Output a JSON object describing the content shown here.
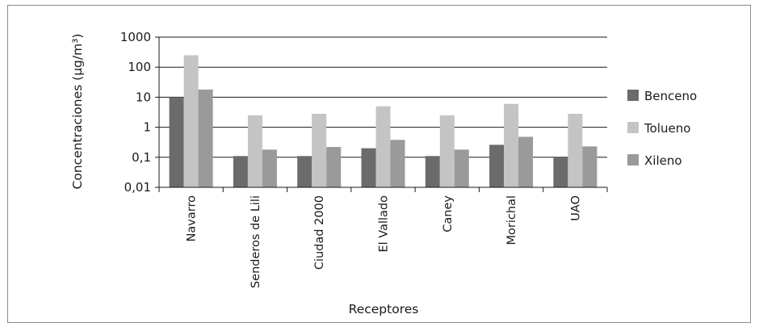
{
  "chart_data": {
    "type": "bar",
    "y_scale": "log",
    "ylim": [
      0.01,
      1000
    ],
    "yticks": [
      "0,01",
      "0,1",
      "1",
      "10",
      "100",
      "1000"
    ],
    "ytick_values": [
      0.01,
      0.1,
      1,
      10,
      100,
      1000
    ],
    "ylabel": "Concentraciones (µg/m³)",
    "xlabel": "Receptores",
    "grid": true,
    "legend_position": "right",
    "categories": [
      "Navarro",
      "Senderos de Lili",
      "Ciudad 2000",
      "El Vallado",
      "Caney",
      "Morichal",
      "UAO"
    ],
    "series": [
      {
        "name": "Benceno",
        "color": "#6b6b6b",
        "values": [
          10,
          0.11,
          0.11,
          0.2,
          0.11,
          0.26,
          0.1
        ]
      },
      {
        "name": "Tolueno",
        "color": "#c4c4c4",
        "values": [
          250,
          2.5,
          2.8,
          5,
          2.5,
          6,
          2.8
        ]
      },
      {
        "name": "Xileno",
        "color": "#9a9a9a",
        "values": [
          18,
          0.18,
          0.22,
          0.38,
          0.18,
          0.48,
          0.23
        ]
      }
    ]
  }
}
